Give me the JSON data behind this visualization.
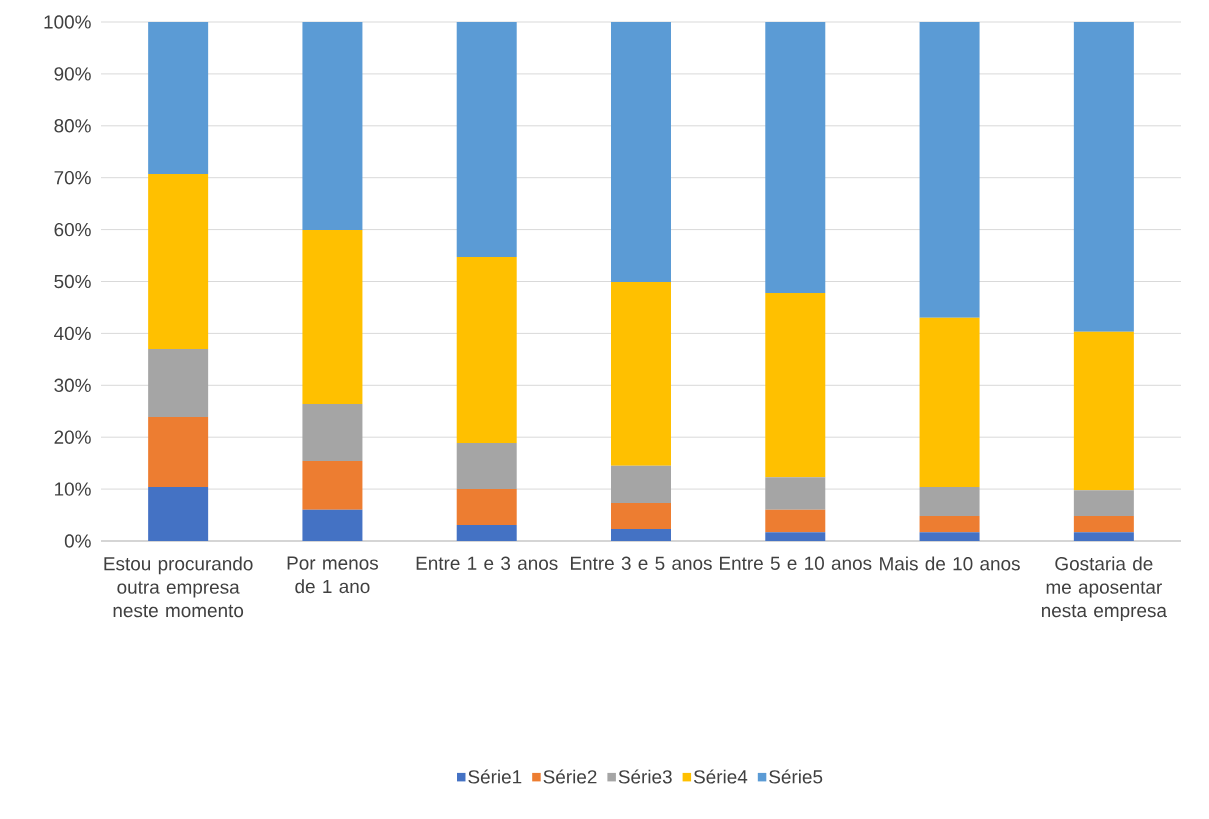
{
  "chart_data": {
    "type": "bar",
    "stacked": true,
    "categories": [
      "Estou procurando outra empresa neste momento",
      "Por menos de 1 ano",
      "Entre 1 e 3 anos",
      "Entre 3 e 5 anos",
      "Entre 5 e 10 anos",
      "Mais de 10 anos",
      "Gostaria de me aposentar nesta empresa"
    ],
    "series": [
      {
        "name": "Série1",
        "color": "#4472c4",
        "values": [
          10.4,
          6.0,
          3.1,
          2.3,
          1.7,
          1.7,
          1.7
        ]
      },
      {
        "name": "Série2",
        "color": "#ed7d31",
        "values": [
          13.5,
          9.4,
          6.9,
          5.0,
          4.3,
          3.1,
          3.1
        ]
      },
      {
        "name": "Série3",
        "color": "#a5a5a5",
        "values": [
          13.1,
          11.0,
          8.9,
          7.2,
          6.3,
          5.6,
          5.0
        ]
      },
      {
        "name": "Série4",
        "color": "#ffc000",
        "values": [
          33.7,
          33.5,
          35.8,
          35.4,
          35.5,
          32.6,
          30.5
        ]
      },
      {
        "name": "Série5",
        "color": "#5b9bd5",
        "values": [
          29.3,
          40.1,
          45.3,
          50.1,
          52.2,
          57.0,
          59.7
        ]
      }
    ],
    "ylim": [
      0,
      100
    ],
    "yticks": [
      {
        "value": 0,
        "label": "0%"
      },
      {
        "value": 10,
        "label": "10%"
      },
      {
        "value": 20,
        "label": "20%"
      },
      {
        "value": 30,
        "label": "30%"
      },
      {
        "value": 40,
        "label": "40%"
      },
      {
        "value": 50,
        "label": "50%"
      },
      {
        "value": 60,
        "label": "60%"
      },
      {
        "value": 70,
        "label": "70%"
      },
      {
        "value": 80,
        "label": "80%"
      },
      {
        "value": 90,
        "label": "90%"
      },
      {
        "value": 100,
        "label": "100%"
      }
    ],
    "grid": "y",
    "legend": "bottom"
  }
}
